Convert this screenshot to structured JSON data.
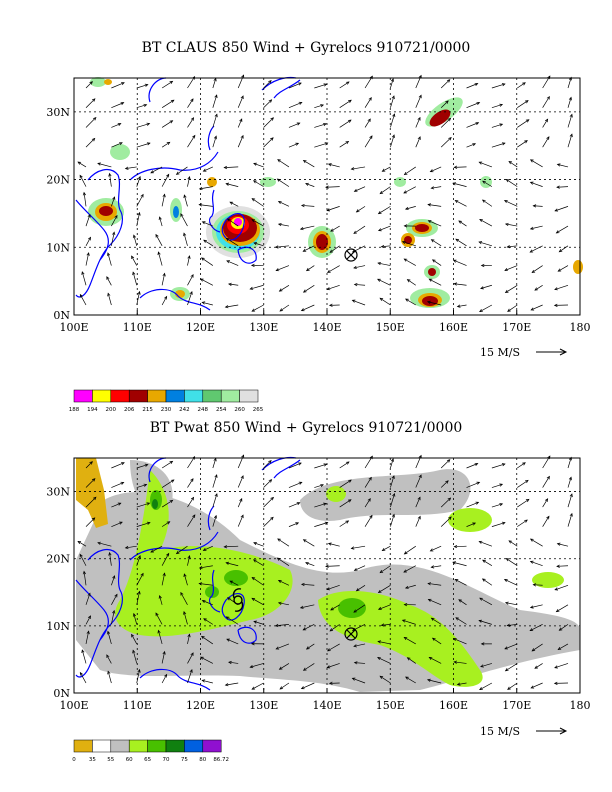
{
  "panels": [
    {
      "title": "BT CLAUS 850 Wind + Gyrelocs 910721/0000",
      "xticks": [
        "100E",
        "110E",
        "120E",
        "130E",
        "140E",
        "150E",
        "160E",
        "170E",
        "180"
      ],
      "yticks": [
        "30N",
        "20N",
        "10N",
        "0N"
      ],
      "scale_label": "15 M/S",
      "legend": {
        "colors": [
          "#ff00ff",
          "#ffff00",
          "#ff0000",
          "#a00000",
          "#e8a800",
          "#0080e0",
          "#40e0e8",
          "#60c870",
          "#a0eca0",
          "#e0e0e0"
        ],
        "labels": [
          "188",
          "194",
          "200",
          "206",
          "215",
          "230",
          "242",
          "248",
          "254",
          "260",
          "265"
        ]
      }
    },
    {
      "title": "BT Pwat 850 Wind + Gyrelocs 910721/0000",
      "xticks": [
        "100E",
        "110E",
        "120E",
        "130E",
        "140E",
        "150E",
        "160E",
        "170E",
        "180"
      ],
      "yticks": [
        "30N",
        "20N",
        "10N",
        "0N"
      ],
      "scale_label": "15 M/S",
      "legend": {
        "colors": [
          "#e0b010",
          "#ffffff",
          "#c0c0c0",
          "#a8f020",
          "#48c000",
          "#108010",
          "#0060e0",
          "#9010d0"
        ],
        "labels": [
          "0",
          "35",
          "55",
          "60",
          "65",
          "70",
          "75",
          "80",
          "86.72"
        ]
      }
    }
  ],
  "colors": {
    "coast": "#0000ff",
    "frame": "#000000"
  }
}
